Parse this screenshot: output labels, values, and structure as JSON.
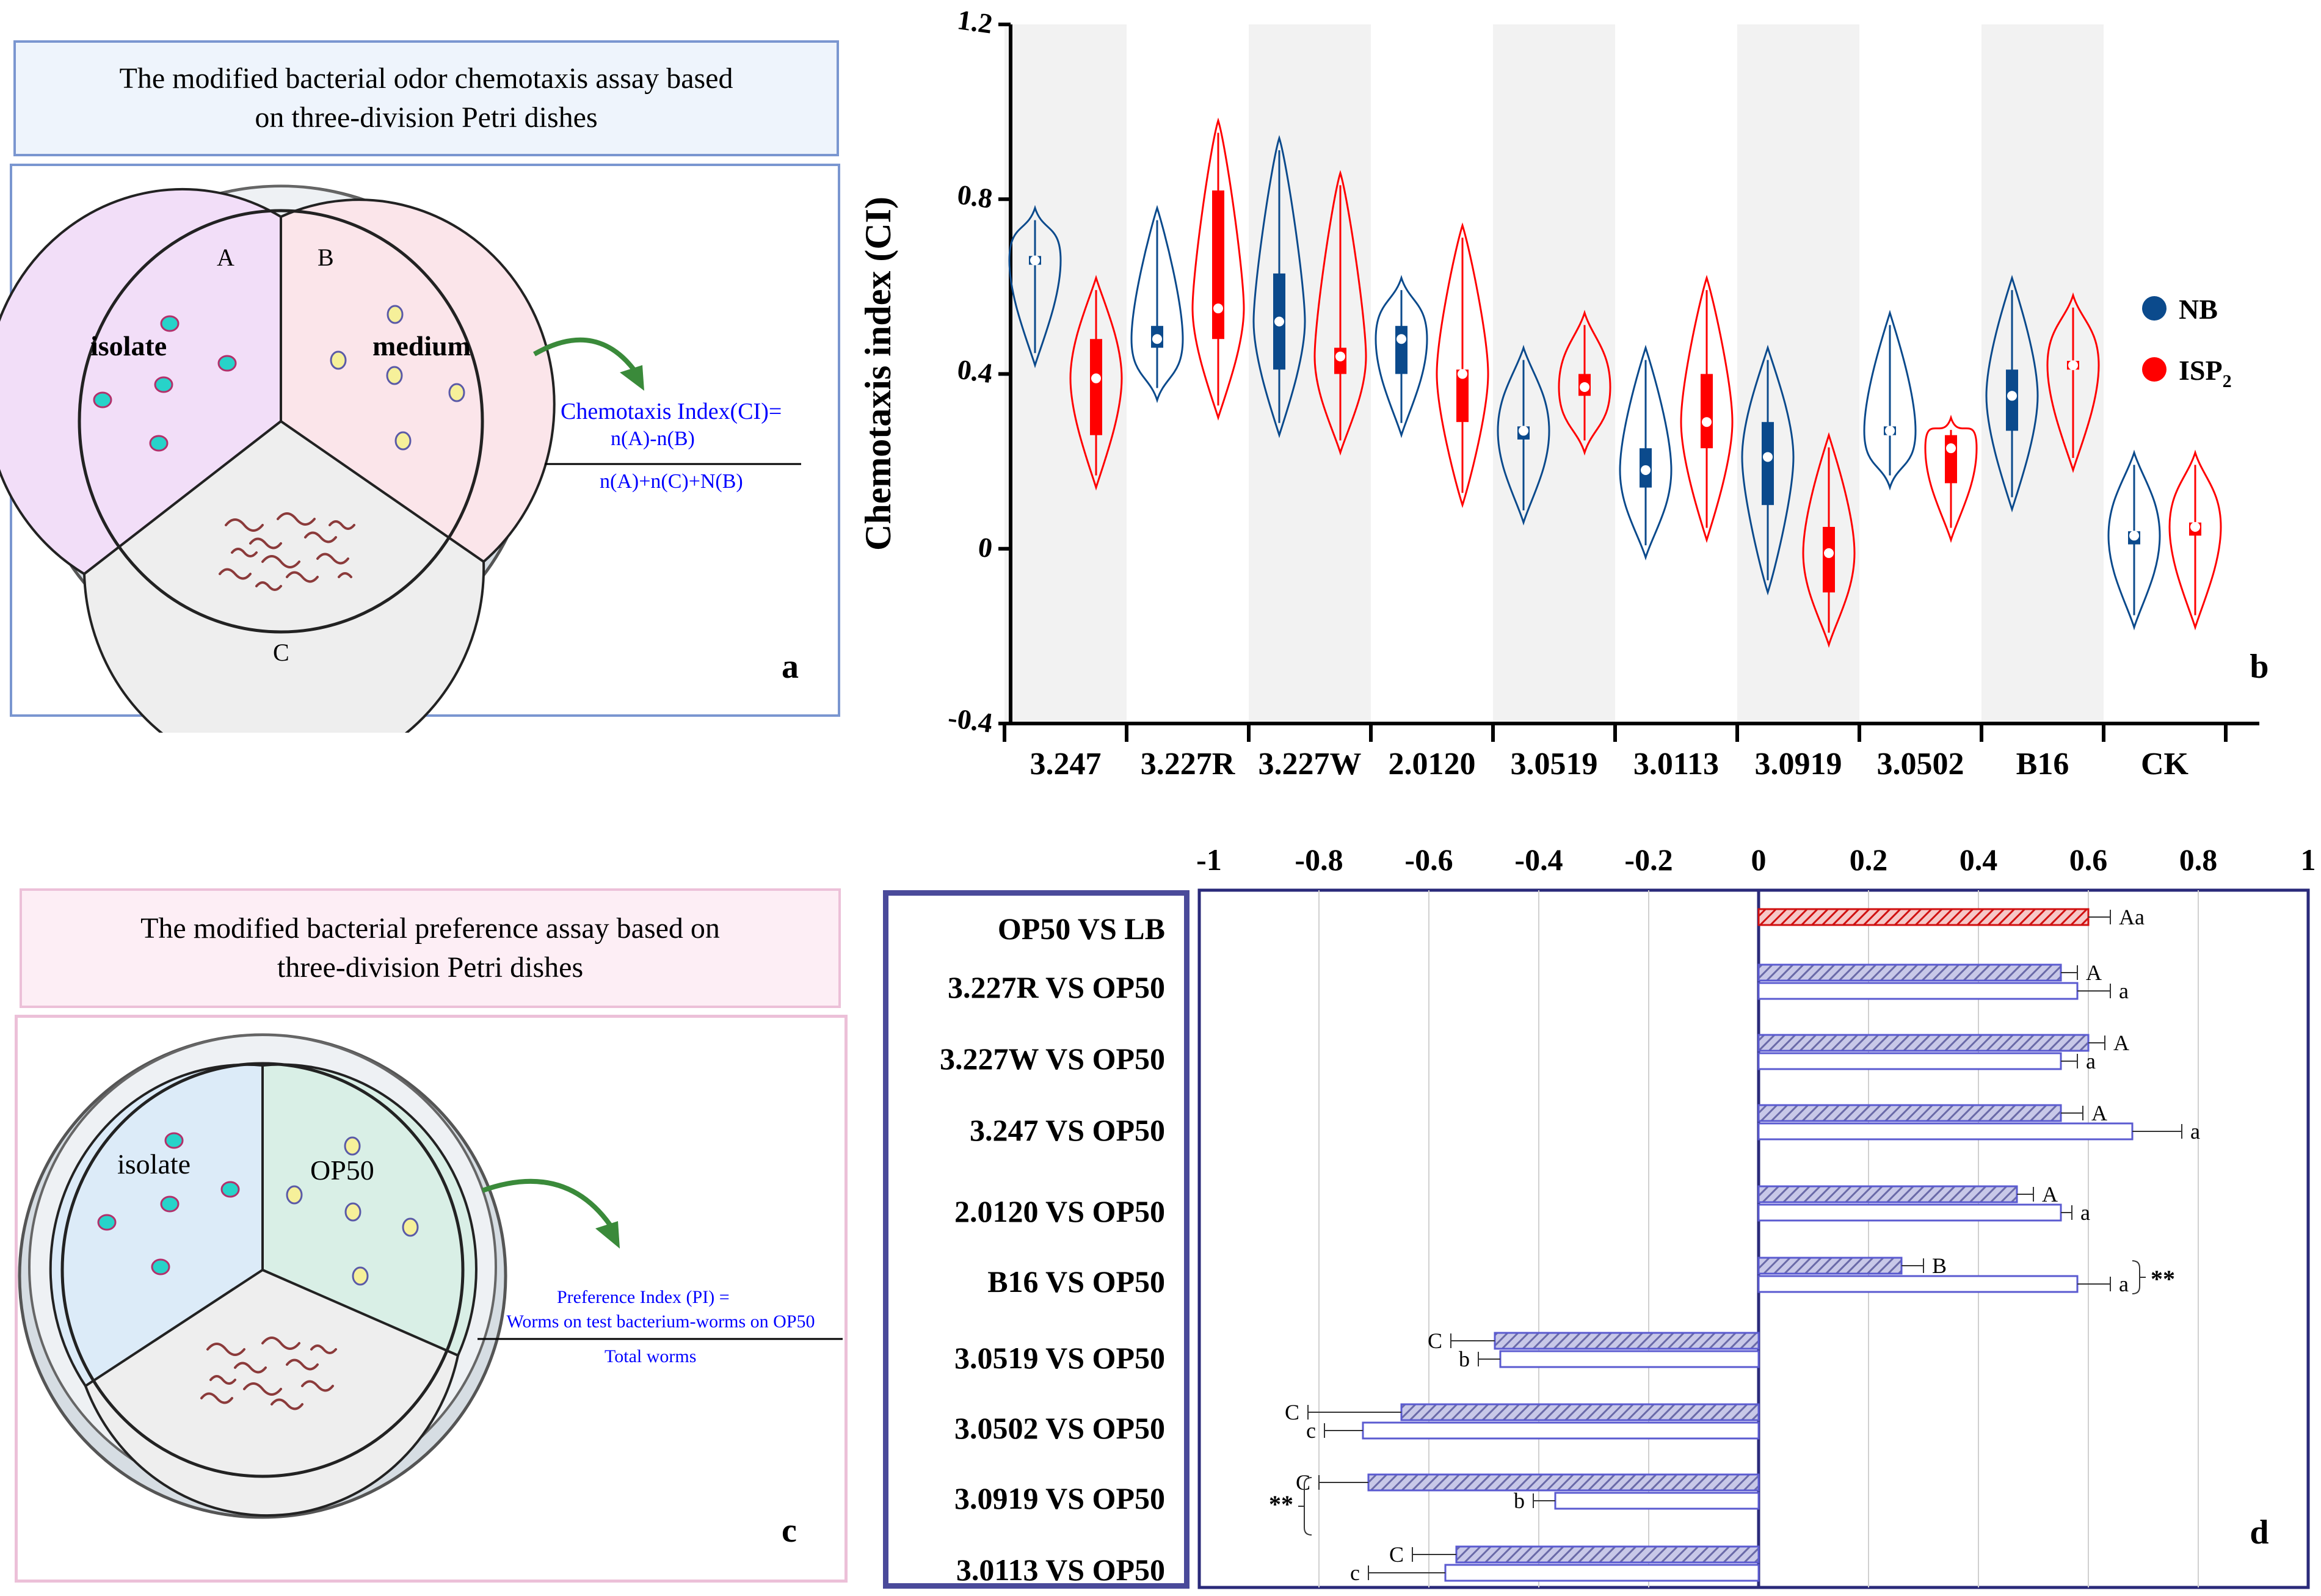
{
  "panel_a": {
    "title_line1": "The modified bacterial odor chemotaxis assay based",
    "title_line2": "on three-division Petri dishes",
    "label_A": "A",
    "label_B": "B",
    "label_C": "C",
    "isolate": "isolate",
    "medium": "medium",
    "formula_title": "Chemotaxis Index(CI)=",
    "formula_num": "n(A)-n(B)",
    "formula_den": "n(A)+n(C)+N(B)",
    "letter": "a"
  },
  "panel_c": {
    "title_line1": "The modified bacterial preference assay based on",
    "title_line2": "three-division Petri dishes",
    "isolate": "isolate",
    "op50": "OP50",
    "formula_title": "Preference Index (PI) =",
    "formula_num": "Worms on test bacterium-worms on OP50",
    "formula_den": "Total worms",
    "letter": "c"
  },
  "colors": {
    "nb": "#0b4a8c",
    "isp": "#ff0000",
    "blue_text": "#0000ff",
    "hatch": "#7070c0",
    "frame": "#4a4a9a"
  },
  "chart_data": [
    {
      "id": "b",
      "type": "violin",
      "ylabel": "Chemotaxis index (CI)",
      "ylim": [
        -0.4,
        1.2
      ],
      "yticks": [
        "1.2",
        "0.8",
        "0.4",
        "0",
        "-0.4"
      ],
      "categories": [
        "3.247",
        "3.227R",
        "3.227W",
        "2.0120",
        "3.0519",
        "3.0113",
        "3.0919",
        "3.0502",
        "B16",
        "CK"
      ],
      "legend": [
        {
          "name": "NB",
          "color": "#0b4a8c"
        },
        {
          "name": "ISP",
          "sub": "2",
          "color": "#ff0000"
        }
      ],
      "series": [
        {
          "name": "NB",
          "color": "#0b4a8c",
          "values": [
            {
              "median": 0.66,
              "q1": 0.65,
              "q3": 0.67,
              "min": 0.42,
              "max": 0.78
            },
            {
              "median": 0.48,
              "q1": 0.46,
              "q3": 0.51,
              "min": 0.34,
              "max": 0.78
            },
            {
              "median": 0.52,
              "q1": 0.41,
              "q3": 0.63,
              "min": 0.26,
              "max": 0.94
            },
            {
              "median": 0.48,
              "q1": 0.4,
              "q3": 0.51,
              "min": 0.26,
              "max": 0.62
            },
            {
              "median": 0.27,
              "q1": 0.25,
              "q3": 0.28,
              "min": 0.06,
              "max": 0.46
            },
            {
              "median": 0.18,
              "q1": 0.14,
              "q3": 0.23,
              "min": -0.02,
              "max": 0.46
            },
            {
              "median": 0.21,
              "q1": 0.1,
              "q3": 0.29,
              "min": -0.1,
              "max": 0.46
            },
            {
              "median": 0.27,
              "q1": 0.26,
              "q3": 0.28,
              "min": 0.14,
              "max": 0.54
            },
            {
              "median": 0.35,
              "q1": 0.27,
              "q3": 0.41,
              "min": 0.09,
              "max": 0.62
            },
            {
              "median": 0.03,
              "q1": 0.01,
              "q3": 0.04,
              "min": -0.18,
              "max": 0.22
            }
          ]
        },
        {
          "name": "ISP2",
          "color": "#ff0000",
          "values": [
            {
              "median": 0.39,
              "q1": 0.26,
              "q3": 0.48,
              "min": 0.14,
              "max": 0.62
            },
            {
              "median": 0.55,
              "q1": 0.48,
              "q3": 0.82,
              "min": 0.3,
              "max": 0.98
            },
            {
              "median": 0.44,
              "q1": 0.4,
              "q3": 0.46,
              "min": 0.22,
              "max": 0.86
            },
            {
              "median": 0.4,
              "q1": 0.29,
              "q3": 0.41,
              "min": 0.1,
              "max": 0.74
            },
            {
              "median": 0.37,
              "q1": 0.35,
              "q3": 0.4,
              "min": 0.22,
              "max": 0.54
            },
            {
              "median": 0.29,
              "q1": 0.23,
              "q3": 0.4,
              "min": 0.02,
              "max": 0.62
            },
            {
              "median": -0.01,
              "q1": -0.1,
              "q3": 0.05,
              "min": -0.22,
              "max": 0.26
            },
            {
              "median": 0.23,
              "q1": 0.15,
              "q3": 0.26,
              "min": 0.02,
              "max": 0.3
            },
            {
              "median": 0.42,
              "q1": 0.41,
              "q3": 0.43,
              "min": 0.18,
              "max": 0.58
            },
            {
              "median": 0.05,
              "q1": 0.03,
              "q3": 0.06,
              "min": -0.18,
              "max": 0.22
            }
          ]
        }
      ],
      "letter": "b"
    },
    {
      "id": "d",
      "type": "bar",
      "orientation": "horizontal",
      "xlim": [
        -1,
        1
      ],
      "xticks": [
        "-1",
        "-0.8",
        "-0.6",
        "-0.4",
        "-0.2",
        "0",
        "0.2",
        "0.4",
        "0.6",
        "0.8",
        "1"
      ],
      "categories": [
        "OP50 VS LB",
        "3.227R VS OP50",
        "3.227W VS OP50",
        "3.247 VS OP50",
        "2.0120 VS OP50",
        "B16 VS OP50",
        "3.0519 VS OP50",
        "3.0502 VS OP50",
        "3.0919 VS OP50",
        "3.0113 VS OP50"
      ],
      "series": [
        {
          "name": "hatched",
          "values": [
            0.6,
            0.55,
            0.6,
            0.55,
            0.47,
            0.26,
            -0.48,
            -0.65,
            -0.71,
            -0.55
          ],
          "errors": [
            0.04,
            0.03,
            0.03,
            0.04,
            0.03,
            0.04,
            0.08,
            0.17,
            0.09,
            0.08
          ],
          "letters": [
            "Aa",
            "A",
            "A",
            "A",
            "A",
            "B",
            "C",
            "C",
            "C",
            "C"
          ]
        },
        {
          "name": "open",
          "values": [
            null,
            0.58,
            0.55,
            0.68,
            0.55,
            0.58,
            -0.47,
            -0.72,
            -0.37,
            -0.57
          ],
          "errors": [
            null,
            0.06,
            0.03,
            0.09,
            0.02,
            0.06,
            0.04,
            0.07,
            0.04,
            0.14
          ],
          "letters": [
            "",
            "a",
            "a",
            "a",
            "a",
            "a",
            "b",
            "c",
            "b",
            "c"
          ]
        }
      ],
      "significance": [
        {
          "row": 5,
          "label": "**",
          "side": "right"
        },
        {
          "row": 8,
          "label": "**",
          "side": "left"
        }
      ],
      "letter": "d"
    }
  ]
}
